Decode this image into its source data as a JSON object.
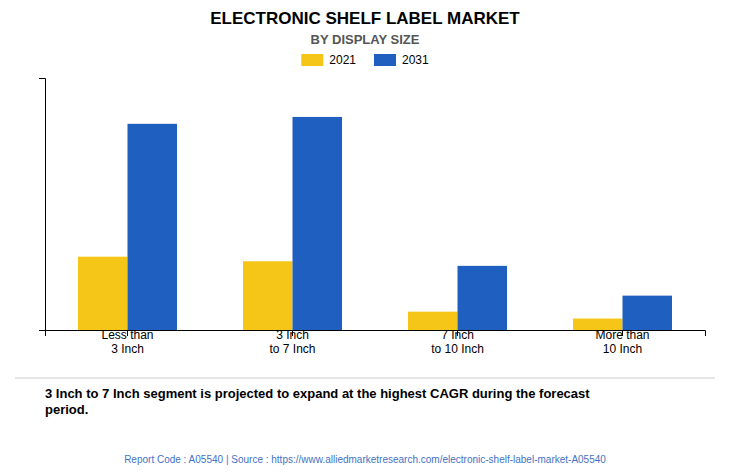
{
  "chart_data": {
    "type": "bar",
    "title": "ELECTRONIC SHELF LABEL MARKET",
    "subtitle": "BY DISPLAY SIZE",
    "categories": [
      "Less than\n3 Inch",
      "3 Inch\nto 7 Inch",
      "7 Inch\nto 10 Inch",
      "More than\n10 Inch"
    ],
    "series": [
      {
        "name": "2021",
        "color": "#F5C518",
        "values": [
          32,
          30,
          8,
          5
        ]
      },
      {
        "name": "2031",
        "color": "#1F5FBF",
        "values": [
          90,
          93,
          28,
          15
        ]
      }
    ],
    "ylim": [
      0,
      110
    ],
    "yticks": [],
    "tick_labels": "x",
    "legend": "top",
    "annotations": [
      "3 Inch to 7 Inch segment is projected to expand at the highest CAGR during the forecast\nperiod.",
      "Report Code : A05540  |  Source : https://www.alliedmarketresearch.com/electronic-shelf-label-market-A05540"
    ]
  }
}
